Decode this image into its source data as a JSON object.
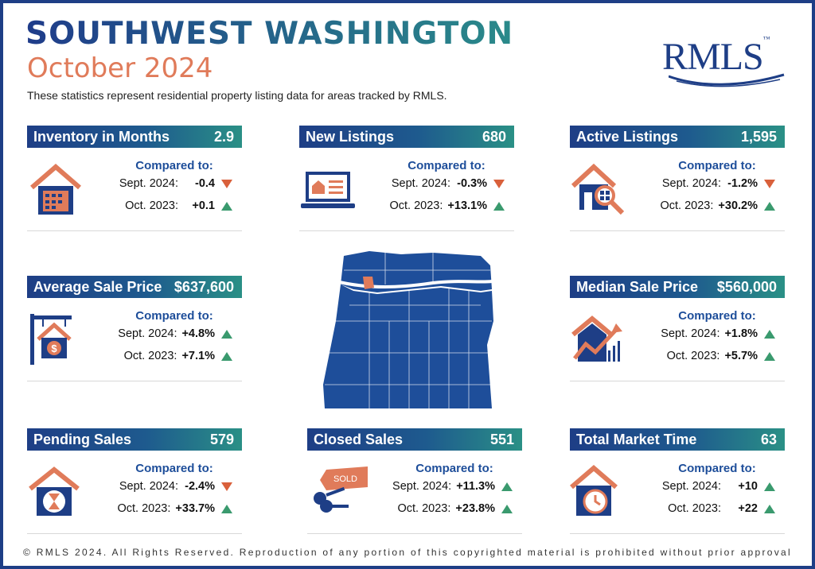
{
  "header": {
    "title": "SOUTHWEST WASHINGTON",
    "subtitle": "October 2024",
    "description": "These statistics represent residential property listing data for areas tracked by RMLS.",
    "logo": "RMLS",
    "logo_tm": "™"
  },
  "compared_label": "Compared to:",
  "cards": [
    {
      "title": "Inventory in Months",
      "value": "2.9",
      "icon": "house-calendar-icon",
      "rows": [
        {
          "label": "Sept. 2024:",
          "change": "-0.4",
          "direction": "down"
        },
        {
          "label": "Oct. 2023:",
          "change": "+0.1",
          "direction": "up"
        }
      ]
    },
    {
      "title": "New Listings",
      "value": "680",
      "icon": "laptop-listing-icon",
      "rows": [
        {
          "label": "Sept. 2024:",
          "change": "-0.3%",
          "direction": "down"
        },
        {
          "label": "Oct. 2023:",
          "change": "+13.1%",
          "direction": "up"
        }
      ]
    },
    {
      "title": "Active Listings",
      "value": "1,595",
      "icon": "house-magnifier-icon",
      "rows": [
        {
          "label": "Sept. 2024:",
          "change": "-1.2%",
          "direction": "down"
        },
        {
          "label": "Oct. 2023:",
          "change": "+30.2%",
          "direction": "up"
        }
      ]
    },
    {
      "title": "Average Sale Price",
      "value": "$637,600",
      "icon": "house-sign-dollar-icon",
      "rows": [
        {
          "label": "Sept. 2024:",
          "change": "+4.8%",
          "direction": "up"
        },
        {
          "label": "Oct. 2023:",
          "change": "+7.1%",
          "direction": "up"
        }
      ]
    },
    {
      "title": "Median Sale Price",
      "value": "$560,000",
      "icon": "house-chart-icon",
      "rows": [
        {
          "label": "Sept. 2024:",
          "change": "+1.8%",
          "direction": "up"
        },
        {
          "label": "Oct. 2023:",
          "change": "+5.7%",
          "direction": "up"
        }
      ]
    },
    {
      "title": "Pending Sales",
      "value": "579",
      "icon": "house-hourglass-icon",
      "rows": [
        {
          "label": "Sept. 2024:",
          "change": "-2.4%",
          "direction": "down"
        },
        {
          "label": "Oct. 2023:",
          "change": "+33.7%",
          "direction": "up"
        }
      ]
    },
    {
      "title": "Closed Sales",
      "value": "551",
      "icon": "sold-keys-icon",
      "sold_text": "SOLD",
      "rows": [
        {
          "label": "Sept. 2024:",
          "change": "+11.3%",
          "direction": "up"
        },
        {
          "label": "Oct. 2023:",
          "change": "+23.8%",
          "direction": "up"
        }
      ]
    },
    {
      "title": "Total Market Time",
      "value": "63",
      "icon": "house-clock-icon",
      "rows": [
        {
          "label": "Sept. 2024:",
          "change": "+10",
          "direction": "up"
        },
        {
          "label": "Oct. 2023:",
          "change": "+22",
          "direction": "up"
        }
      ]
    }
  ],
  "map": {
    "icon": "oregon-washington-map-icon",
    "highlight": "southwest-washington"
  },
  "colors": {
    "navy": "#1e3e86",
    "teal": "#2a9086",
    "coral": "#e07b5a",
    "up": "#3a9a6e",
    "down": "#d9603b"
  },
  "footer": "© RMLS 2024. All Rights Reserved. Reproduction of any portion of this copyrighted material is prohibited without prior approval"
}
